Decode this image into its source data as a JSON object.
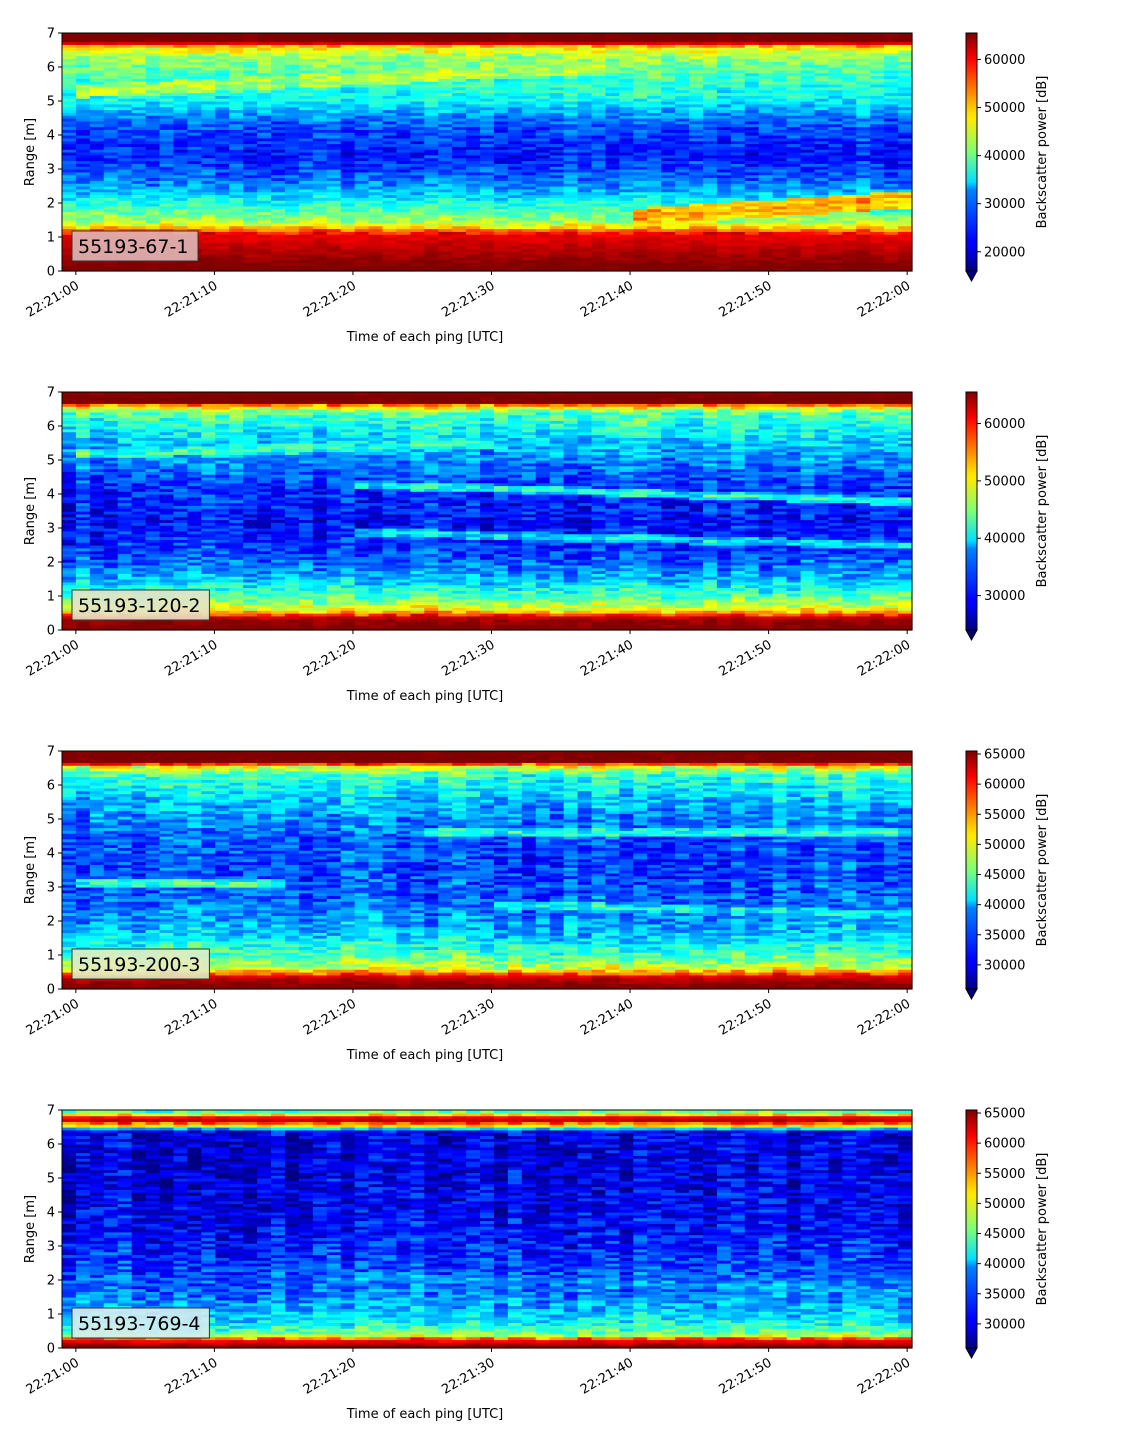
{
  "figure": {
    "background": "#ffffff"
  },
  "chart_data": [
    {
      "type": "heatmap",
      "label": "55193-67-1",
      "label_bg": "#dfb8b8",
      "xlabel": "Time of each ping [UTC]",
      "ylabel": "Range [m]",
      "colorbar_label": "Backscatter power [dB]",
      "xlim": [
        "22:21:00",
        "22:22:00"
      ],
      "xticks": [
        "22:21:00",
        "22:21:10",
        "22:21:20",
        "22:21:30",
        "22:21:40",
        "22:21:50",
        "22:22:00"
      ],
      "ylim": [
        0,
        7
      ],
      "yticks": [
        0,
        1,
        2,
        3,
        4,
        5,
        6,
        7
      ],
      "clim": [
        16000,
        65500
      ],
      "cticks": [
        20000,
        30000,
        40000,
        50000,
        60000
      ],
      "colormap": "jet",
      "colorbar_extend": "min",
      "profile": [
        {
          "range": 0.1,
          "value": 66000
        },
        {
          "range": 0.6,
          "value": 63000
        },
        {
          "range": 1.1,
          "value": 60000
        },
        {
          "range": 1.4,
          "value": 44000
        },
        {
          "range": 1.9,
          "value": 37000
        },
        {
          "range": 2.5,
          "value": 29000
        },
        {
          "range": 3.4,
          "value": 23000
        },
        {
          "range": 4.3,
          "value": 26000
        },
        {
          "range": 5.1,
          "value": 35000
        },
        {
          "range": 5.8,
          "value": 38000
        },
        {
          "range": 6.3,
          "value": 42000
        },
        {
          "range": 6.6,
          "value": 48000
        },
        {
          "range": 6.75,
          "value": 66000
        },
        {
          "range": 7.0,
          "value": 66000
        }
      ],
      "features": [
        {
          "t0": 40,
          "r0": 1.6,
          "t1": 60,
          "r1": 2.1,
          "value": 52000,
          "width": 0.25
        },
        {
          "t0": 0,
          "r0": 5.3,
          "t1": 38,
          "r1": 6.0,
          "value": 44000,
          "width": 0.2
        }
      ]
    },
    {
      "type": "heatmap",
      "label": "55193-120-2",
      "label_bg": "#e6e4c9",
      "xlabel": "Time of each ping [UTC]",
      "ylabel": "Range [m]",
      "colorbar_label": "Backscatter power [dB]",
      "xlim": [
        "22:21:00",
        "22:22:00"
      ],
      "xticks": [
        "22:21:00",
        "22:21:10",
        "22:21:20",
        "22:21:30",
        "22:21:40",
        "22:21:50",
        "22:22:00"
      ],
      "ylim": [
        0,
        7
      ],
      "yticks": [
        0,
        1,
        2,
        3,
        4,
        5,
        6,
        7
      ],
      "clim": [
        24000,
        65500
      ],
      "cticks": [
        30000,
        40000,
        50000,
        60000
      ],
      "colormap": "jet",
      "colorbar_extend": "min",
      "profile": [
        {
          "range": 0.05,
          "value": 66000
        },
        {
          "range": 0.35,
          "value": 64000
        },
        {
          "range": 0.6,
          "value": 50000
        },
        {
          "range": 1.0,
          "value": 43000
        },
        {
          "range": 1.5,
          "value": 37000
        },
        {
          "range": 2.2,
          "value": 32000
        },
        {
          "range": 3.2,
          "value": 29500
        },
        {
          "range": 4.2,
          "value": 31000
        },
        {
          "range": 5.0,
          "value": 35000
        },
        {
          "range": 5.8,
          "value": 39000
        },
        {
          "range": 6.4,
          "value": 43000
        },
        {
          "range": 6.6,
          "value": 52000
        },
        {
          "range": 6.7,
          "value": 66000
        },
        {
          "range": 7.0,
          "value": 66000
        }
      ],
      "features": [
        {
          "t0": 20,
          "r0": 4.3,
          "t1": 60,
          "r1": 3.8,
          "value": 41000,
          "width": 0.12
        },
        {
          "t0": 20,
          "r0": 2.9,
          "t1": 60,
          "r1": 2.5,
          "value": 39000,
          "width": 0.12
        },
        {
          "t0": 0,
          "r0": 5.2,
          "t1": 30,
          "r1": 5.5,
          "value": 42000,
          "width": 0.15
        }
      ]
    },
    {
      "type": "heatmap",
      "label": "55193-200-3",
      "label_bg": "#e2ecc4",
      "xlabel": "Time of each ping [UTC]",
      "ylabel": "Range [m]",
      "colorbar_label": "Backscatter power [dB]",
      "xlim": [
        "22:21:00",
        "22:22:00"
      ],
      "xticks": [
        "22:21:00",
        "22:21:10",
        "22:21:20",
        "22:21:30",
        "22:21:40",
        "22:21:50",
        "22:22:00"
      ],
      "ylim": [
        0,
        7
      ],
      "yticks": [
        0,
        1,
        2,
        3,
        4,
        5,
        6,
        7
      ],
      "clim": [
        26000,
        65500
      ],
      "cticks": [
        30000,
        35000,
        40000,
        45000,
        50000,
        55000,
        60000,
        65000
      ],
      "colormap": "jet",
      "colorbar_extend": "min",
      "profile": [
        {
          "range": 0.05,
          "value": 66000
        },
        {
          "range": 0.35,
          "value": 63000
        },
        {
          "range": 0.6,
          "value": 50000
        },
        {
          "range": 1.0,
          "value": 44000
        },
        {
          "range": 1.6,
          "value": 39000
        },
        {
          "range": 2.5,
          "value": 35000
        },
        {
          "range": 3.5,
          "value": 33500
        },
        {
          "range": 4.5,
          "value": 34500
        },
        {
          "range": 5.5,
          "value": 38000
        },
        {
          "range": 6.3,
          "value": 43000
        },
        {
          "range": 6.55,
          "value": 50000
        },
        {
          "range": 6.7,
          "value": 66000
        },
        {
          "range": 7.0,
          "value": 66000
        }
      ],
      "features": [
        {
          "t0": 25,
          "r0": 4.6,
          "t1": 60,
          "r1": 4.6,
          "value": 43000,
          "width": 0.12
        },
        {
          "t0": 0,
          "r0": 3.1,
          "t1": 15,
          "r1": 3.1,
          "value": 44000,
          "width": 0.12
        },
        {
          "t0": 30,
          "r0": 2.5,
          "t1": 60,
          "r1": 2.2,
          "value": 42000,
          "width": 0.12
        }
      ]
    },
    {
      "type": "heatmap",
      "label": "55193-769-4",
      "label_bg": "#d6ecf1",
      "xlabel": "Time of each ping [UTC]",
      "ylabel": "Range [m]",
      "colorbar_label": "Backscatter power [dB]",
      "xlim": [
        "22:21:00",
        "22:22:00"
      ],
      "xticks": [
        "22:21:00",
        "22:21:10",
        "22:21:20",
        "22:21:30",
        "22:21:40",
        "22:21:50",
        "22:22:00"
      ],
      "ylim": [
        0,
        7
      ],
      "yticks": [
        0,
        1,
        2,
        3,
        4,
        5,
        6,
        7
      ],
      "clim": [
        26000,
        65500
      ],
      "cticks": [
        30000,
        35000,
        40000,
        45000,
        50000,
        55000,
        60000,
        65000
      ],
      "colormap": "jet",
      "colorbar_extend": "min",
      "profile": [
        {
          "range": 0.05,
          "value": 66000
        },
        {
          "range": 0.25,
          "value": 60000
        },
        {
          "range": 0.4,
          "value": 46000
        },
        {
          "range": 0.8,
          "value": 40000
        },
        {
          "range": 1.5,
          "value": 36000
        },
        {
          "range": 2.5,
          "value": 33000
        },
        {
          "range": 3.5,
          "value": 31000
        },
        {
          "range": 4.5,
          "value": 30000
        },
        {
          "range": 5.5,
          "value": 29500
        },
        {
          "range": 6.4,
          "value": 30000
        },
        {
          "range": 6.55,
          "value": 52000
        },
        {
          "range": 6.75,
          "value": 66000
        },
        {
          "range": 6.9,
          "value": 48000
        },
        {
          "range": 7.0,
          "value": 42000
        }
      ],
      "features": [
        {
          "t0": 20,
          "r0": 2.1,
          "t1": 60,
          "r1": 1.7,
          "value": 38000,
          "width": 0.15
        }
      ]
    }
  ]
}
